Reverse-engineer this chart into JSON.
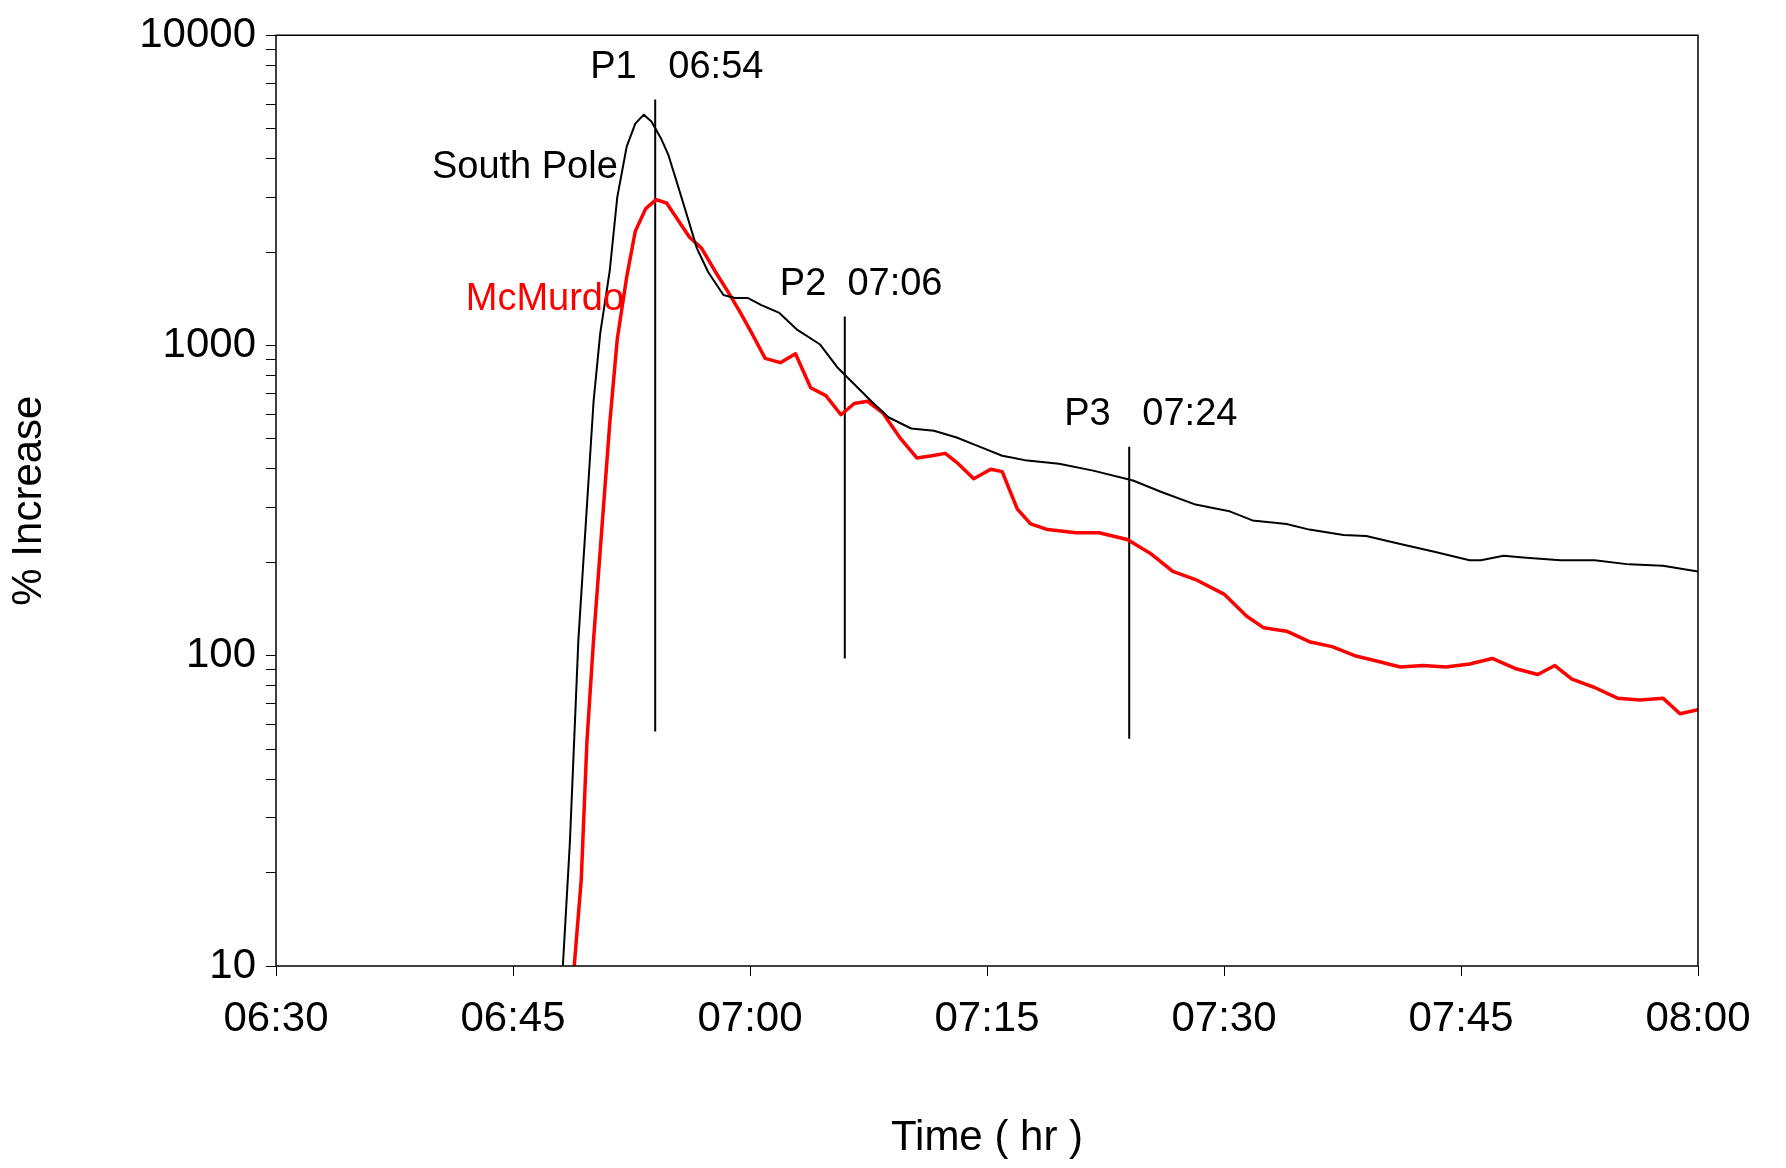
{
  "chart_data": {
    "type": "line",
    "xlabel": "Time ( hr )",
    "ylabel": "% Increase",
    "log": "y",
    "grid": false,
    "legend": false,
    "marker": "none",
    "xlim": [
      6.5,
      8.0
    ],
    "xticks": [
      {
        "value": 6.5,
        "label": "06:30"
      },
      {
        "value": 6.75,
        "label": "06:45"
      },
      {
        "value": 7.0,
        "label": "07:00"
      },
      {
        "value": 7.25,
        "label": "07:15"
      },
      {
        "value": 7.5,
        "label": "07:30"
      },
      {
        "value": 7.75,
        "label": "07:45"
      },
      {
        "value": 8.0,
        "label": "08:00"
      }
    ],
    "ylim": [
      10,
      10000
    ],
    "yticks": [
      10,
      {
        "value": 20,
        "label": null
      },
      {
        "value": 30,
        "label": null
      },
      {
        "value": 40,
        "label": null
      },
      {
        "value": 50,
        "label": null
      },
      {
        "value": 60,
        "label": null
      },
      {
        "value": 70,
        "label": null
      },
      {
        "value": 80,
        "label": null
      },
      {
        "value": 90,
        "label": null
      },
      100,
      {
        "value": 200,
        "label": null
      },
      {
        "value": 300,
        "label": null
      },
      {
        "value": 400,
        "label": null
      },
      {
        "value": 500,
        "label": null
      },
      {
        "value": 600,
        "label": null
      },
      {
        "value": 700,
        "label": null
      },
      {
        "value": 800,
        "label": null
      },
      {
        "value": 900,
        "label": null
      },
      1000,
      {
        "value": 2000,
        "label": null
      },
      {
        "value": 3000,
        "label": null
      },
      {
        "value": 4000,
        "label": null
      },
      {
        "value": 5000,
        "label": null
      },
      {
        "value": 6000,
        "label": null
      },
      {
        "value": 7000,
        "label": null
      },
      {
        "value": 8000,
        "label": null
      },
      {
        "value": 9000,
        "label": null
      },
      10000
    ],
    "series": [
      {
        "name": "South Pole",
        "color": "#000000",
        "x": [
          6.8026,
          6.81,
          6.819,
          6.827,
          6.835,
          6.842,
          6.852,
          6.86,
          6.87,
          6.879,
          6.888,
          6.896,
          6.906,
          6.914,
          6.924,
          6.935,
          6.944,
          6.956,
          6.972,
          6.984,
          6.998,
          7.012,
          7.031,
          7.05,
          7.074,
          7.092,
          7.11,
          7.128,
          7.146,
          7.17,
          7.194,
          7.218,
          7.242,
          7.266,
          7.29,
          7.326,
          7.362,
          7.404,
          7.434,
          7.47,
          7.506,
          7.53,
          7.566,
          7.59,
          7.626,
          7.65,
          7.686,
          7.723,
          7.759,
          7.771,
          7.795,
          7.819,
          7.855,
          7.891,
          7.927,
          7.963,
          8.0
        ],
        "values": [
          10,
          25,
          113,
          273,
          661,
          1094,
          1738,
          3006,
          4385,
          5190,
          5545,
          5270,
          4656,
          4105,
          3268,
          2537,
          2056,
          1722,
          1455,
          1422,
          1422,
          1349,
          1273,
          1122,
          1007,
          851,
          750,
          661,
          587,
          540,
          531,
          505,
          472,
          441,
          427,
          416,
          395,
          367,
          337,
          307,
          292,
          273,
          266,
          255,
          245,
          243,
          229,
          216,
          203,
          203,
          210,
          207,
          203,
          203,
          197,
          195,
          187
        ]
      },
      {
        "name": "McMurdo",
        "color": "#ff0000",
        "x": [
          6.8146,
          6.822,
          6.828,
          6.835,
          6.843,
          6.852,
          6.86,
          6.87,
          6.879,
          6.89,
          6.901,
          6.912,
          6.924,
          6.936,
          6.949,
          6.963,
          6.978,
          6.99,
          7.002,
          7.016,
          7.032,
          7.048,
          7.064,
          7.08,
          7.096,
          7.11,
          7.124,
          7.14,
          7.158,
          7.176,
          7.192,
          7.206,
          7.218,
          7.236,
          7.254,
          7.266,
          7.282,
          7.296,
          7.314,
          7.344,
          7.368,
          7.398,
          7.422,
          7.446,
          7.47,
          7.5,
          7.524,
          7.542,
          7.566,
          7.59,
          7.614,
          7.638,
          7.662,
          7.686,
          7.71,
          7.734,
          7.759,
          7.783,
          7.807,
          7.831,
          7.849,
          7.867,
          7.891,
          7.915,
          7.939,
          7.963,
          7.981,
          8.0
        ],
        "values": [
          10,
          19,
          53,
          113,
          240,
          558,
          1049,
          1667,
          2335,
          2761,
          2953,
          2879,
          2537,
          2238,
          2056,
          1738,
          1469,
          1273,
          1094,
          909,
          880,
          940,
          731,
          689,
          598,
          650,
          661,
          607,
          505,
          434,
          441,
          449,
          420,
          372,
          399,
          392,
          297,
          266,
          255,
          249,
          249,
          237,
          214,
          187,
          176,
          158,
          134,
          123,
          120,
          111,
          107,
          100,
          96,
          92,
          93,
          92,
          94,
          98,
          91,
          87,
          93,
          84,
          79,
          73,
          72,
          73,
          65,
          67
        ]
      },
      {
        "color": "#000000",
        "x": [
          6.9,
          6.9
        ],
        "values": [
          57,
          6200
        ]
      },
      {
        "color": "#000000",
        "x": [
          7.1,
          7.1
        ],
        "values": [
          98,
          1240
        ]
      },
      {
        "color": "#000000",
        "x": [
          7.4,
          7.4
        ],
        "values": [
          54,
          472
        ]
      }
    ],
    "annotations": [
      {
        "text": "P1   06:54",
        "x": 6.9,
        "y": 6200
      },
      {
        "text": "P2  07:06",
        "x": 7.1,
        "y": 1240
      },
      {
        "text": "P3   07:24",
        "x": 7.4,
        "y": 472
      }
    ]
  }
}
